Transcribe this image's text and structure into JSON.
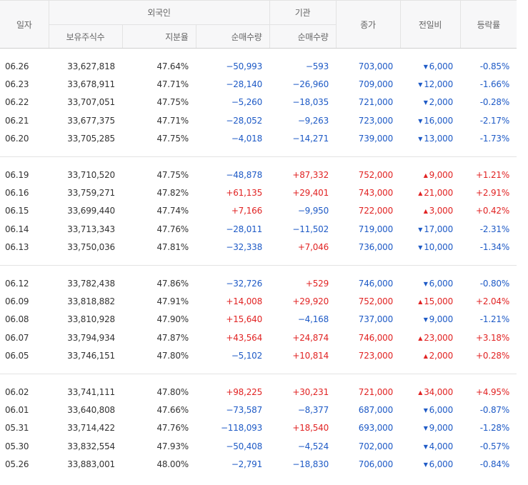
{
  "headers": {
    "date": "일자",
    "foreign": "외국인",
    "institution": "기관",
    "close": "종가",
    "change": "전일비",
    "rate": "등락률",
    "holdings": "보유주식수",
    "ratio": "지분율",
    "foreign_net": "순매수량",
    "inst_net": "순매수량"
  },
  "colors": {
    "down": "#1e5ac6",
    "up": "#e12323"
  },
  "groups": [
    [
      {
        "date": "06.26",
        "holdings": "33,627,818",
        "ratio": "47.64%",
        "foreign_net": "−50,993",
        "inst_net": "−593",
        "close": "703,000",
        "dir": "down",
        "change": "6,000",
        "rate": "-0.85%"
      },
      {
        "date": "06.23",
        "holdings": "33,678,911",
        "ratio": "47.71%",
        "foreign_net": "−28,140",
        "inst_net": "−26,960",
        "close": "709,000",
        "dir": "down",
        "change": "12,000",
        "rate": "-1.66%"
      },
      {
        "date": "06.22",
        "holdings": "33,707,051",
        "ratio": "47.75%",
        "foreign_net": "−5,260",
        "inst_net": "−18,035",
        "close": "721,000",
        "dir": "down",
        "change": "2,000",
        "rate": "-0.28%"
      },
      {
        "date": "06.21",
        "holdings": "33,677,375",
        "ratio": "47.71%",
        "foreign_net": "−28,052",
        "inst_net": "−9,263",
        "close": "723,000",
        "dir": "down",
        "change": "16,000",
        "rate": "-2.17%"
      },
      {
        "date": "06.20",
        "holdings": "33,705,285",
        "ratio": "47.75%",
        "foreign_net": "−4,018",
        "inst_net": "−14,271",
        "close": "739,000",
        "dir": "down",
        "change": "13,000",
        "rate": "-1.73%"
      }
    ],
    [
      {
        "date": "06.19",
        "holdings": "33,710,520",
        "ratio": "47.75%",
        "foreign_net": "−48,878",
        "inst_net": "+87,332",
        "close": "752,000",
        "dir": "up",
        "change": "9,000",
        "rate": "+1.21%"
      },
      {
        "date": "06.16",
        "holdings": "33,759,271",
        "ratio": "47.82%",
        "foreign_net": "+61,135",
        "inst_net": "+29,401",
        "close": "743,000",
        "dir": "up",
        "change": "21,000",
        "rate": "+2.91%"
      },
      {
        "date": "06.15",
        "holdings": "33,699,440",
        "ratio": "47.74%",
        "foreign_net": "+7,166",
        "inst_net": "−9,950",
        "close": "722,000",
        "dir": "up",
        "change": "3,000",
        "rate": "+0.42%"
      },
      {
        "date": "06.14",
        "holdings": "33,713,343",
        "ratio": "47.76%",
        "foreign_net": "−28,011",
        "inst_net": "−11,502",
        "close": "719,000",
        "dir": "down",
        "change": "17,000",
        "rate": "-2.31%"
      },
      {
        "date": "06.13",
        "holdings": "33,750,036",
        "ratio": "47.81%",
        "foreign_net": "−32,338",
        "inst_net": "+7,046",
        "close": "736,000",
        "dir": "down",
        "change": "10,000",
        "rate": "-1.34%"
      }
    ],
    [
      {
        "date": "06.12",
        "holdings": "33,782,438",
        "ratio": "47.86%",
        "foreign_net": "−32,726",
        "inst_net": "+529",
        "close": "746,000",
        "dir": "down",
        "change": "6,000",
        "rate": "-0.80%"
      },
      {
        "date": "06.09",
        "holdings": "33,818,882",
        "ratio": "47.91%",
        "foreign_net": "+14,008",
        "inst_net": "+29,920",
        "close": "752,000",
        "dir": "up",
        "change": "15,000",
        "rate": "+2.04%"
      },
      {
        "date": "06.08",
        "holdings": "33,810,928",
        "ratio": "47.90%",
        "foreign_net": "+15,640",
        "inst_net": "−4,168",
        "close": "737,000",
        "dir": "down",
        "change": "9,000",
        "rate": "-1.21%"
      },
      {
        "date": "06.07",
        "holdings": "33,794,934",
        "ratio": "47.87%",
        "foreign_net": "+43,564",
        "inst_net": "+24,874",
        "close": "746,000",
        "dir": "up",
        "change": "23,000",
        "rate": "+3.18%"
      },
      {
        "date": "06.05",
        "holdings": "33,746,151",
        "ratio": "47.80%",
        "foreign_net": "−5,102",
        "inst_net": "+10,814",
        "close": "723,000",
        "dir": "up",
        "change": "2,000",
        "rate": "+0.28%"
      }
    ],
    [
      {
        "date": "06.02",
        "holdings": "33,741,111",
        "ratio": "47.80%",
        "foreign_net": "+98,225",
        "inst_net": "+30,231",
        "close": "721,000",
        "dir": "up",
        "change": "34,000",
        "rate": "+4.95%"
      },
      {
        "date": "06.01",
        "holdings": "33,640,808",
        "ratio": "47.66%",
        "foreign_net": "−73,587",
        "inst_net": "−8,377",
        "close": "687,000",
        "dir": "down",
        "change": "6,000",
        "rate": "-0.87%"
      },
      {
        "date": "05.31",
        "holdings": "33,714,422",
        "ratio": "47.76%",
        "foreign_net": "−118,093",
        "inst_net": "+18,540",
        "close": "693,000",
        "dir": "down",
        "change": "9,000",
        "rate": "-1.28%"
      },
      {
        "date": "05.30",
        "holdings": "33,832,554",
        "ratio": "47.93%",
        "foreign_net": "−50,408",
        "inst_net": "−4,524",
        "close": "702,000",
        "dir": "down",
        "change": "4,000",
        "rate": "-0.57%"
      },
      {
        "date": "05.26",
        "holdings": "33,883,001",
        "ratio": "48.00%",
        "foreign_net": "−2,791",
        "inst_net": "−18,830",
        "close": "706,000",
        "dir": "down",
        "change": "6,000",
        "rate": "-0.84%"
      }
    ]
  ]
}
